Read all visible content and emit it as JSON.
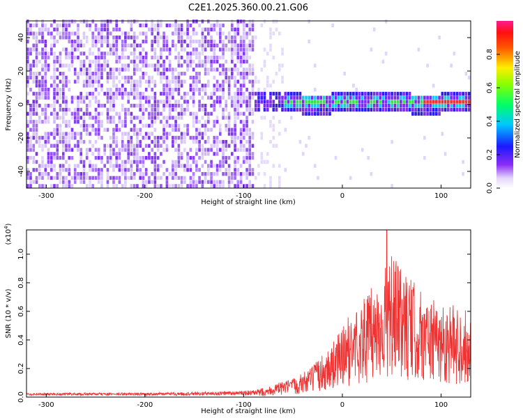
{
  "title": "C2E1.2025.360.00.21.G06",
  "chart_data": [
    {
      "type": "heatmap",
      "xlabel": "Height of straight line (km)",
      "ylabel": "Frequency (Hz)",
      "xlim": [
        -320,
        130
      ],
      "ylim": [
        -50,
        50
      ],
      "x_ticks": [
        -300,
        -200,
        -100,
        0,
        100
      ],
      "x_tick_labels": [
        "-300",
        "-200",
        "-100",
        "0",
        "100"
      ],
      "y_ticks": [
        -40,
        -20,
        0,
        20,
        40
      ],
      "y_tick_labels": [
        "-40",
        "-20",
        "0",
        "20",
        "40"
      ],
      "colorbar": {
        "label": "Normalized spectral amplitude",
        "range": [
          0,
          1
        ],
        "ticks": [
          0.0,
          0.2,
          0.4,
          0.6,
          0.8
        ],
        "tick_labels": [
          "0.0",
          "0.2",
          "0.4",
          "0.6",
          "0.8"
        ]
      },
      "description_points": {
        "noise_region_x": [
          -320,
          -90
        ],
        "signal_band_x": [
          -110,
          130
        ],
        "signal_center_freq": 0,
        "signal_band_halfwidth": 6
      }
    },
    {
      "type": "line",
      "xlabel": "Height of straight line (km)",
      "ylabel": "SNR (10 * v/v)",
      "y_scale_label": "(x10",
      "y_scale_exp": "4",
      "y_scale_close": ")",
      "xlim": [
        -320,
        130
      ],
      "ylim": [
        0,
        1.17
      ],
      "x_ticks": [
        -300,
        -200,
        -100,
        0,
        100
      ],
      "x_tick_labels": [
        "-300",
        "-200",
        "-100",
        "0",
        "100"
      ],
      "y_ticks": [
        0.0,
        0.2,
        0.4,
        0.6,
        0.8,
        1.0
      ],
      "y_tick_labels": [
        "0.0",
        "0.2",
        "0.4",
        "0.6",
        "0.8",
        "1.0"
      ],
      "series_color": "#ee3333",
      "envelope": {
        "x": [
          -320,
          -200,
          -120,
          -90,
          -70,
          -50,
          -30,
          -10,
          10,
          30,
          50,
          70,
          90,
          110,
          130
        ],
        "y": [
          0.02,
          0.02,
          0.03,
          0.04,
          0.08,
          0.12,
          0.2,
          0.35,
          0.55,
          0.7,
          0.9,
          0.75,
          0.62,
          0.6,
          0.55
        ]
      },
      "peak": {
        "x": 45,
        "y": 1.17
      }
    }
  ],
  "colors": {
    "purple": "#7b2cf0",
    "light_purple": "#cdb6f8",
    "signal_green": "#39e04a",
    "signal_cyan": "#19c9e8",
    "signal_red": "#ee3333",
    "line_red": "#ee3333"
  }
}
